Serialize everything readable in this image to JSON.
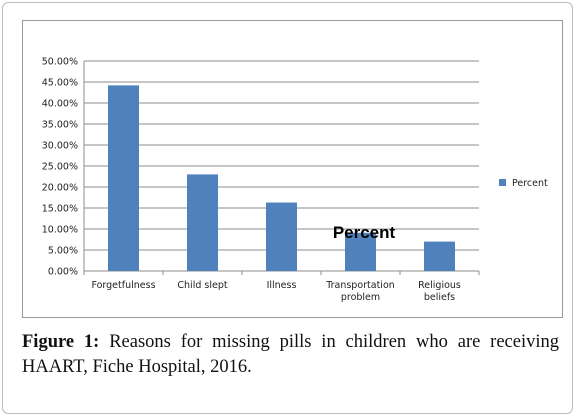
{
  "chart_data": {
    "type": "bar",
    "title": "",
    "overlay_label": "Percent",
    "xlabel": "",
    "ylabel": "",
    "categories": [
      "Forgetfulness",
      "Child slept",
      "Illness",
      "Transportation problem",
      "Religious beliefs"
    ],
    "category_lines": [
      [
        "Forgetfulness"
      ],
      [
        "Child slept"
      ],
      [
        "Illness"
      ],
      [
        "Transportation",
        "problem"
      ],
      [
        "Religious",
        "beliefs"
      ]
    ],
    "series": [
      {
        "name": "Percent",
        "values": [
          44.2,
          23.0,
          16.3,
          9.1,
          7.0
        ],
        "color": "#4f81bd"
      }
    ],
    "ylim": [
      0,
      50
    ],
    "yticks": [
      0,
      5,
      10,
      15,
      20,
      25,
      30,
      35,
      40,
      45,
      50
    ],
    "ytick_labels": [
      "0.00%",
      "5.00%",
      "10.00%",
      "15.00%",
      "20.00%",
      "25.00%",
      "30.00%",
      "35.00%",
      "40.00%",
      "45.00%",
      "50.00%"
    ],
    "grid": true,
    "legend_position": "right"
  },
  "caption": {
    "label": "Figure 1:",
    "text": "Reasons for missing pills in children who are receiving HAART, Fiche Hospital, 2016."
  }
}
